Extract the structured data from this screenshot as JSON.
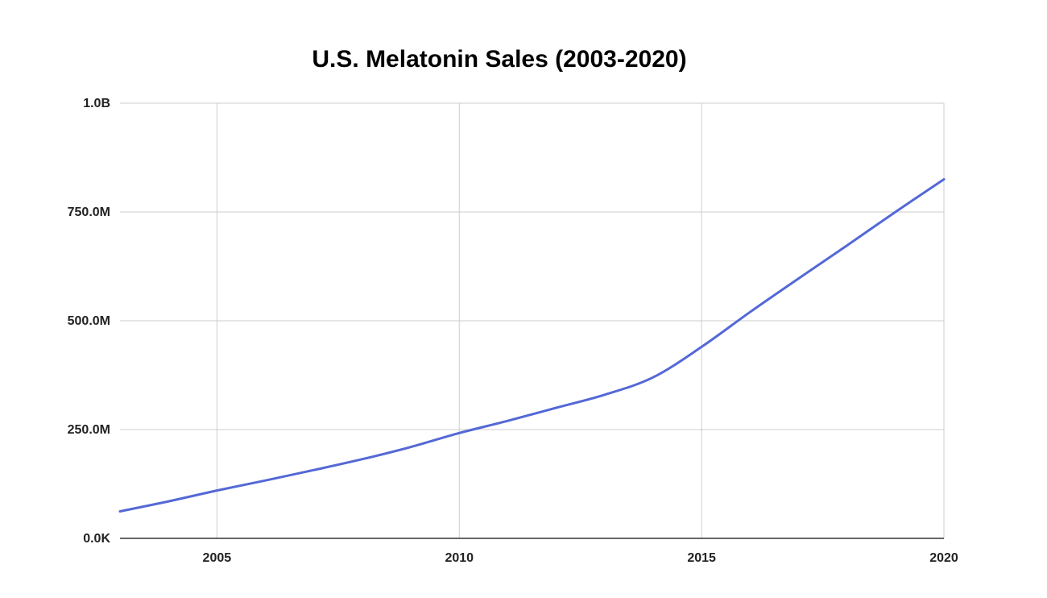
{
  "chart_data": {
    "type": "line",
    "title": "U.S. Melatonin Sales (2003-2020)",
    "xlabel": "",
    "ylabel": "",
    "x": [
      2003,
      2004,
      2005,
      2006,
      2007,
      2008,
      2009,
      2010,
      2011,
      2012,
      2013,
      2014,
      2015,
      2016,
      2017,
      2018,
      2019,
      2020
    ],
    "series": [
      {
        "values": [
          62000000,
          85000000,
          110000000,
          133000000,
          157000000,
          182000000,
          210000000,
          242000000,
          270000000,
          300000000,
          330000000,
          370000000,
          440000000,
          520000000,
          597000000,
          673000000,
          750000000,
          825000000
        ]
      }
    ],
    "xlim": [
      2003,
      2020
    ],
    "ylim": [
      0,
      1000000000
    ],
    "x_ticks": [
      2005,
      2010,
      2015,
      2020
    ],
    "x_tick_labels": [
      "2005",
      "2010",
      "2015",
      "2020"
    ],
    "y_ticks": [
      0,
      250000000,
      500000000,
      750000000,
      1000000000
    ],
    "y_tick_labels": [
      "0.0K",
      "250.0M",
      "500.0M",
      "750.0M",
      "1.0B"
    ],
    "grid": true,
    "legend": "none",
    "colors": {
      "line": "#5468d6",
      "grid": "#cccccc",
      "baseline": "#333333"
    }
  }
}
